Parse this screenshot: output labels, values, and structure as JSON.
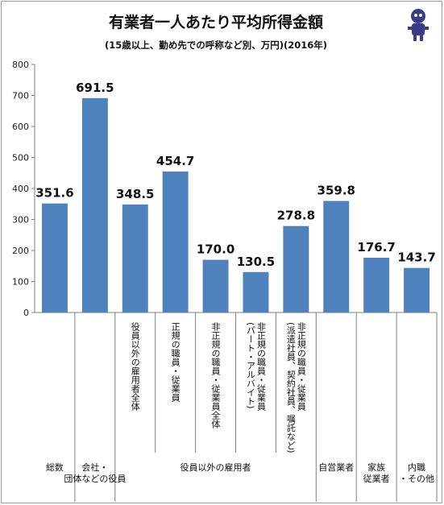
{
  "chart_data": {
    "type": "bar",
    "title": "有業者一人あたり平均所得金額",
    "subtitle": "(15歳以上、勤め先での呼称など別、万円)(2016年)",
    "ylim": [
      0,
      800
    ],
    "yticks": [
      0,
      100,
      200,
      300,
      400,
      500,
      600,
      700,
      800
    ],
    "grid": false,
    "bar_color": "#4f81bd",
    "categories": [
      "総数",
      "会社・団体などの役員",
      "役員以外の雇用者全体",
      "正規の職員・従業員",
      "非正規の職員・従業員全体",
      "非正規の職員・従業員(パート・アルバイト)",
      "非正規の職員・従業員(派遣社員、契約社員、嘱託など)",
      "自営業者",
      "家族従業者",
      "内職・その他"
    ],
    "values": [
      351.6,
      691.5,
      348.5,
      454.7,
      170.0,
      130.5,
      278.8,
      359.8,
      176.7,
      143.7
    ],
    "value_labels": [
      "351.6",
      "691.5",
      "348.5",
      "454.7",
      "170.0",
      "130.5",
      "278.8",
      "359.8",
      "176.7",
      "143.7"
    ],
    "vertical_labels": [
      {
        "index": 2,
        "lines": [
          "役員以外の雇用者全体"
        ]
      },
      {
        "index": 3,
        "lines": [
          "正規の職員・従業員"
        ]
      },
      {
        "index": 4,
        "lines": [
          "非正規の職員・従業員全体"
        ]
      },
      {
        "index": 5,
        "lines": [
          "非正規の職員・従業員",
          "(パート・アルバイト)"
        ]
      },
      {
        "index": 6,
        "lines": [
          "非正規の職員・従業員",
          "(派遣社員、契約社員、嘱託など)"
        ]
      }
    ],
    "group_labels": [
      {
        "from": 0,
        "to": 0,
        "lines": [
          "総数"
        ]
      },
      {
        "from": 1,
        "to": 1,
        "lines": [
          "会社・",
          "団体などの役員"
        ]
      },
      {
        "from": 2,
        "to": 6,
        "lines": [
          "役員以外の雇用者"
        ]
      },
      {
        "from": 7,
        "to": 7,
        "lines": [
          "自営業者"
        ]
      },
      {
        "from": 8,
        "to": 8,
        "lines": [
          "家族",
          "従業者"
        ]
      },
      {
        "from": 9,
        "to": 9,
        "lines": [
          "内職",
          "・その他"
        ]
      }
    ]
  }
}
